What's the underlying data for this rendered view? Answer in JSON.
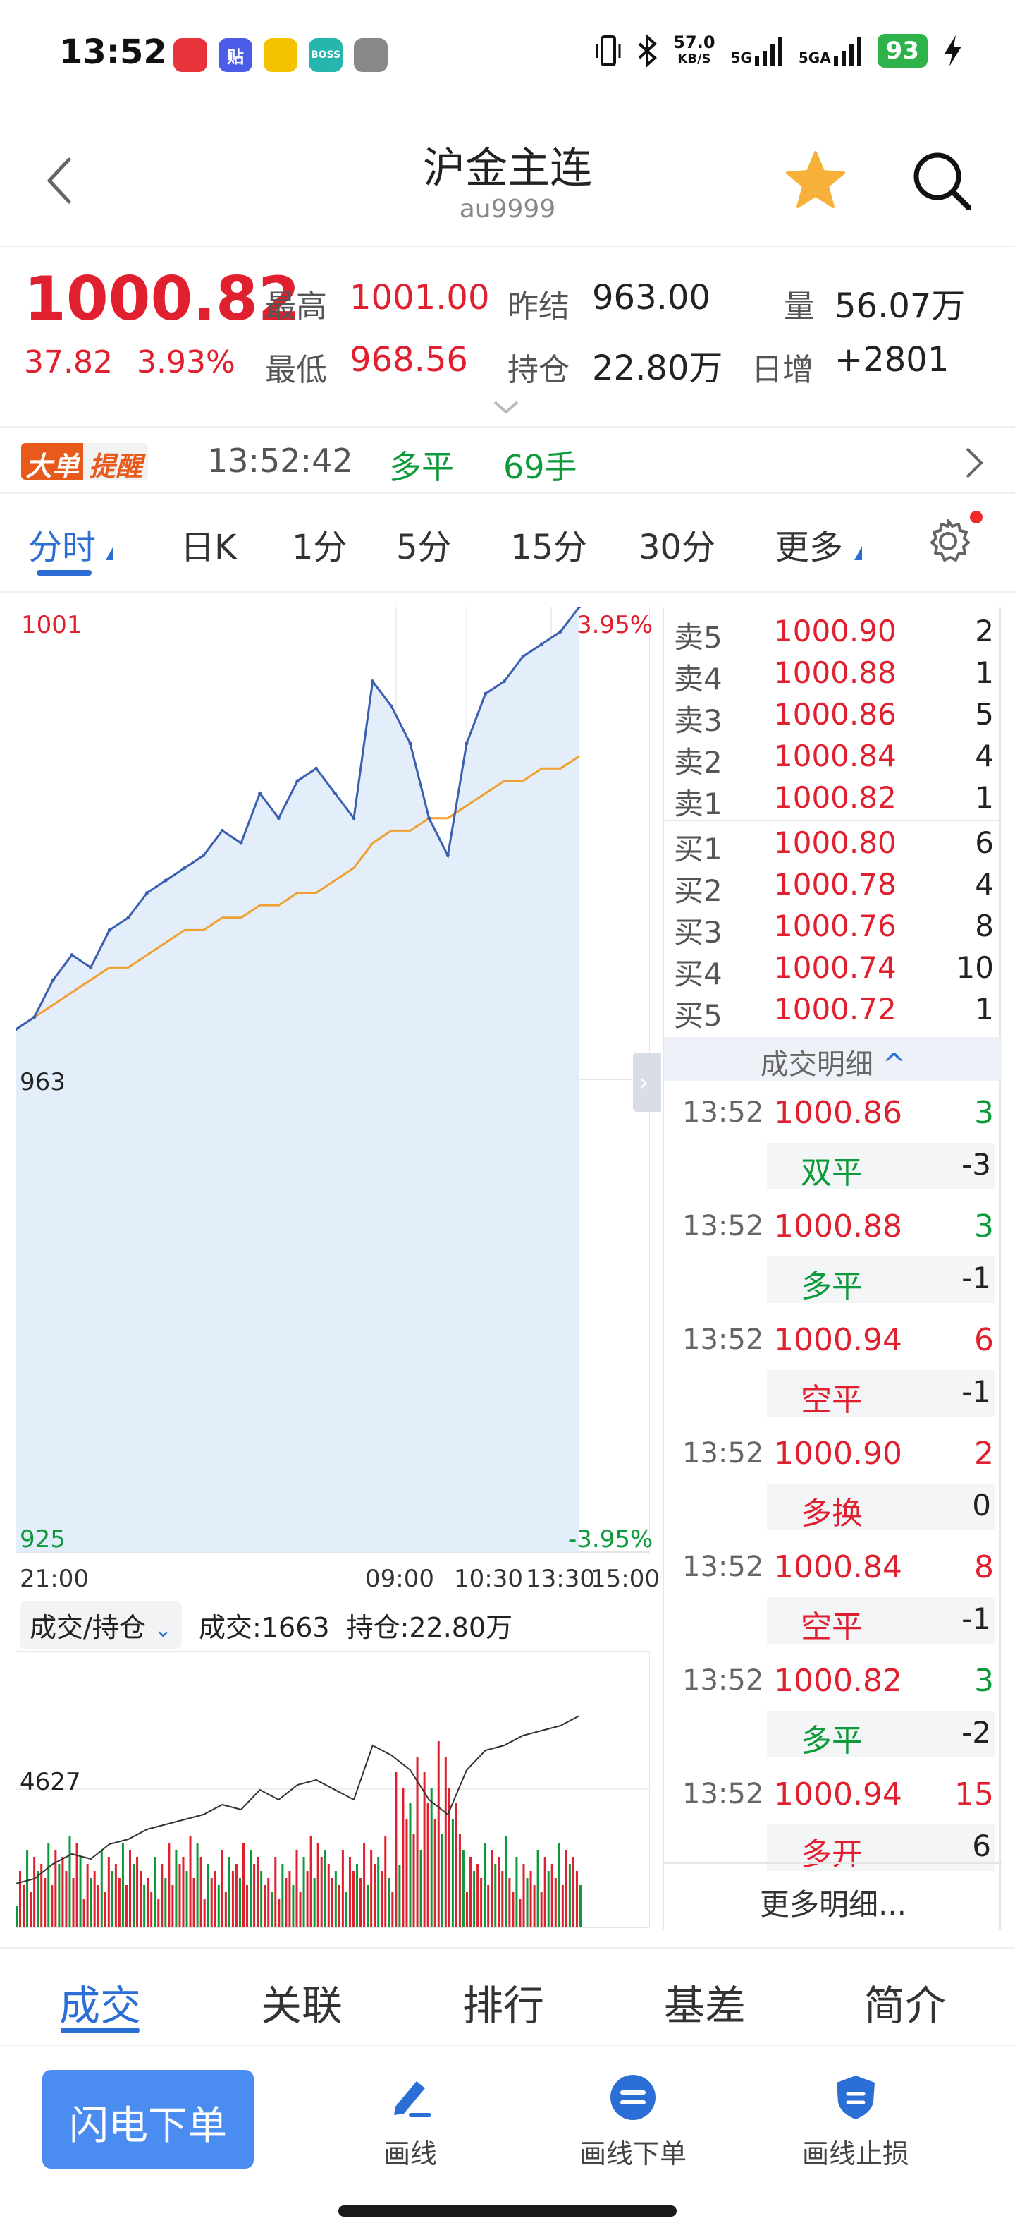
{
  "status_bar": {
    "time": "13:52",
    "apps": [
      {
        "icon": "red-packet-app-icon",
        "label": "",
        "color": "#e8333b"
      },
      {
        "icon": "tieba-app-icon",
        "label": "贴",
        "color": "#4a5ce8"
      },
      {
        "icon": "car-app-icon",
        "label": "",
        "color": "#f5c200"
      },
      {
        "icon": "boss-zhipin-app-icon",
        "label": "BOSS",
        "color": "#25b6ad"
      },
      {
        "icon": "vpn-app-icon",
        "label": "",
        "color": "#888888"
      }
    ],
    "net_speed_value": "57.0",
    "net_speed_unit": "KB/S",
    "signal_1": "5G",
    "signal_2": "5GA",
    "battery": "93"
  },
  "nav": {
    "title": "沪金主连",
    "subtitle": "au9999"
  },
  "quote": {
    "price": "1000.82",
    "change": "37.82",
    "change_pct": "3.93%",
    "high_label": "最高",
    "high": "1001.00",
    "low_label": "最低",
    "low": "968.56",
    "prev_settle_label": "昨结",
    "prev_settle": "963.00",
    "open_interest_label": "持仓",
    "open_interest": "22.80万",
    "volume_label": "量",
    "volume": "56.07万",
    "daily_inc_label": "日增",
    "daily_inc": "+2801"
  },
  "big_order": {
    "badge_part1": "大单",
    "badge_part2": "提醒",
    "time": "13:52:42",
    "direction": "多平",
    "volume": "69手"
  },
  "periods": {
    "tabs": [
      "分时",
      "日K",
      "1分",
      "5分",
      "15分",
      "30分",
      "更多"
    ],
    "active": "分时"
  },
  "chart": {
    "top_price": "1001",
    "mid_price": "963",
    "bottom_price": "925",
    "top_pct": "3.95%",
    "bottom_pct": "-3.95%",
    "times": [
      "21:00",
      "09:00",
      "10:30",
      "13:30",
      "15:00"
    ],
    "vol_selector": "成交/持仓",
    "vol_info": "成交:1663",
    "oi_info": "持仓:22.80万",
    "oi_axis": "4627"
  },
  "chart_data": {
    "type": "line",
    "ylim": [
      925,
      1001
    ],
    "y_right_pct": [
      -3.95,
      3.95
    ],
    "x_ticks": [
      "21:00",
      "09:00",
      "10:30",
      "13:30",
      "15:00"
    ],
    "series": [
      {
        "values": [
          967,
          968,
          971,
          973,
          972,
          975,
          976,
          978,
          979,
          980,
          981,
          983,
          982,
          986,
          984,
          987,
          988,
          986,
          984,
          995,
          993,
          990,
          984,
          981,
          990,
          994,
          995,
          997,
          998,
          999,
          1001
        ]
      },
      {
        "values": [
          967,
          968,
          969,
          970,
          971,
          972,
          972,
          973,
          974,
          975,
          975,
          976,
          976,
          977,
          977,
          978,
          978,
          979,
          980,
          982,
          983,
          983,
          984,
          984,
          985,
          986,
          987,
          987,
          988,
          988,
          989
        ]
      }
    ]
  },
  "order_book": {
    "asks": [
      {
        "label": "卖5",
        "price": "1000.90",
        "vol": "2"
      },
      {
        "label": "卖4",
        "price": "1000.88",
        "vol": "1"
      },
      {
        "label": "卖3",
        "price": "1000.86",
        "vol": "5"
      },
      {
        "label": "卖2",
        "price": "1000.84",
        "vol": "4"
      },
      {
        "label": "卖1",
        "price": "1000.82",
        "vol": "1"
      }
    ],
    "bids": [
      {
        "label": "买1",
        "price": "1000.80",
        "vol": "6"
      },
      {
        "label": "买2",
        "price": "1000.78",
        "vol": "4"
      },
      {
        "label": "买3",
        "price": "1000.76",
        "vol": "8"
      },
      {
        "label": "买4",
        "price": "1000.74",
        "vol": "10"
      },
      {
        "label": "买5",
        "price": "1000.72",
        "vol": "1"
      }
    ]
  },
  "trades": {
    "header": "成交明细",
    "items": [
      {
        "time": "13:52",
        "price": "1000.86",
        "vol": "3",
        "vol_color": "#0d9a3a",
        "type": "双平",
        "type_color": "#0d9a3a",
        "chg": "-3"
      },
      {
        "time": "13:52",
        "price": "1000.88",
        "vol": "3",
        "vol_color": "#0d9a3a",
        "type": "多平",
        "type_color": "#0d9a3a",
        "chg": "-1"
      },
      {
        "time": "13:52",
        "price": "1000.94",
        "vol": "6",
        "vol_color": "#e0202e",
        "type": "空平",
        "type_color": "#e0202e",
        "chg": "-1"
      },
      {
        "time": "13:52",
        "price": "1000.90",
        "vol": "2",
        "vol_color": "#e0202e",
        "type": "多换",
        "type_color": "#e0202e",
        "chg": "0"
      },
      {
        "time": "13:52",
        "price": "1000.84",
        "vol": "8",
        "vol_color": "#e0202e",
        "type": "空平",
        "type_color": "#e0202e",
        "chg": "-1"
      },
      {
        "time": "13:52",
        "price": "1000.82",
        "vol": "3",
        "vol_color": "#0d9a3a",
        "type": "多平",
        "type_color": "#0d9a3a",
        "chg": "-2"
      },
      {
        "time": "13:52",
        "price": "1000.94",
        "vol": "15",
        "vol_color": "#e0202e",
        "type": "多开",
        "type_color": "#e0202e",
        "chg": "6"
      }
    ],
    "more": "更多明细..."
  },
  "bottom_tabs": {
    "tabs": [
      "成交",
      "关联",
      "排行",
      "基差",
      "简介"
    ],
    "active": "成交"
  },
  "actions": {
    "flash_order": "闪电下单",
    "draw_line": "画线",
    "draw_line_order": "画线下单",
    "draw_line_stop": "画线止损"
  },
  "colors": {
    "up": "#e0202e",
    "down": "#0d9a3a",
    "accent": "#2b6fd6",
    "price_line": "#3a5fb0",
    "avg_line": "#f0a030",
    "fill": "#dfeaf9"
  }
}
